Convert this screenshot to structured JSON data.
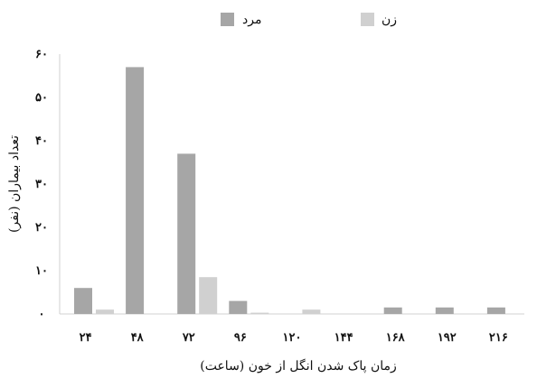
{
  "chart_data": {
    "type": "bar",
    "categories": [
      "۲۴",
      "۴۸",
      "۷۲",
      "۹۶",
      "۱۲۰",
      "۱۴۴",
      "۱۶۸",
      "۱۹۲",
      "۲۱۶"
    ],
    "series": [
      {
        "name": "مرد",
        "color": "#a6a6a6",
        "values": [
          6,
          57,
          37,
          3,
          0,
          0,
          1.5,
          1.5,
          1.5
        ]
      },
      {
        "name": "زن",
        "color": "#d0d0d0",
        "values": [
          1,
          0,
          8.5,
          0.3,
          1,
          0,
          0,
          0,
          0
        ]
      }
    ],
    "yticks": [
      {
        "value": 0,
        "label": "۰"
      },
      {
        "value": 10,
        "label": "۱۰"
      },
      {
        "value": 20,
        "label": "۲۰"
      },
      {
        "value": 30,
        "label": "۳۰"
      },
      {
        "value": 40,
        "label": "۴۰"
      },
      {
        "value": 50,
        "label": "۵۰"
      },
      {
        "value": 60,
        "label": "۶۰"
      }
    ],
    "ylim": [
      0,
      60
    ],
    "xlabel": "زمان پاک شدن انگل از خون (ساعت)",
    "ylabel": "تعداد بیماران (نفر)",
    "grid": false,
    "legend_position": "top"
  }
}
